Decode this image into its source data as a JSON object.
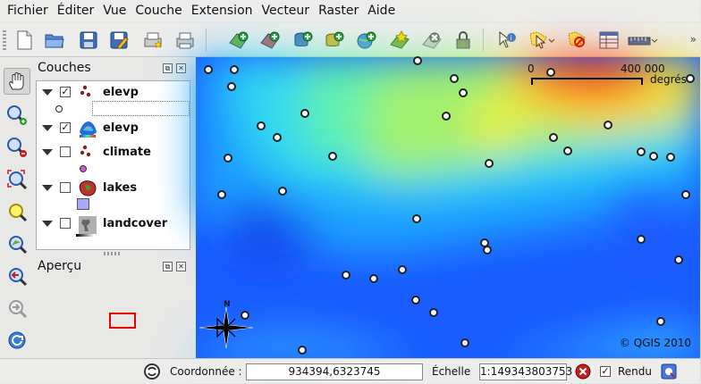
{
  "menu": [
    "Fichier",
    "Éditer",
    "Vue",
    "Couche",
    "Extension",
    "Vecteur",
    "Raster",
    "Aide"
  ],
  "toolbar_icons": [
    "new-project-icon",
    "open-project-icon",
    "save-project-icon",
    "save-as-icon",
    "new-print-composer-icon",
    "print-composer-manager-icon",
    "add-vector-layer-icon",
    "add-raster-layer-icon",
    "add-postgis-layer-icon",
    "add-spatialite-layer-icon",
    "add-wms-layer-icon",
    "new-shapefile-layer-icon",
    "remove-layer-icon",
    "toggle-editing-icon",
    "identify-features-icon",
    "select-features-icon",
    "deselect-features-icon",
    "open-attribute-table-icon",
    "measure-line-icon"
  ],
  "couches": {
    "title": "Couches",
    "layers": [
      {
        "name": "elevp",
        "checked": true
      },
      {
        "name": "elevp",
        "checked": true
      },
      {
        "name": "climate",
        "checked": false
      },
      {
        "name": "lakes",
        "checked": false
      },
      {
        "name": "landcover",
        "checked": false
      }
    ]
  },
  "apercu": {
    "title": "Aperçu"
  },
  "map": {
    "scale_start": "0",
    "scale_end": "400 000",
    "scale_unit": "degrés",
    "copyright": "© QGIS 2010",
    "north_label": "N"
  },
  "status": {
    "coord_label": "Coordonnée :",
    "coord_value": "934394,6323745",
    "scale_label": "Échelle",
    "scale_value": "1:149343803753",
    "render_label": "Rendu",
    "render_checked": true
  },
  "colors": {
    "accent_red": "#e00000",
    "map_low": "#1260ff",
    "map_high": "#ff3000"
  }
}
